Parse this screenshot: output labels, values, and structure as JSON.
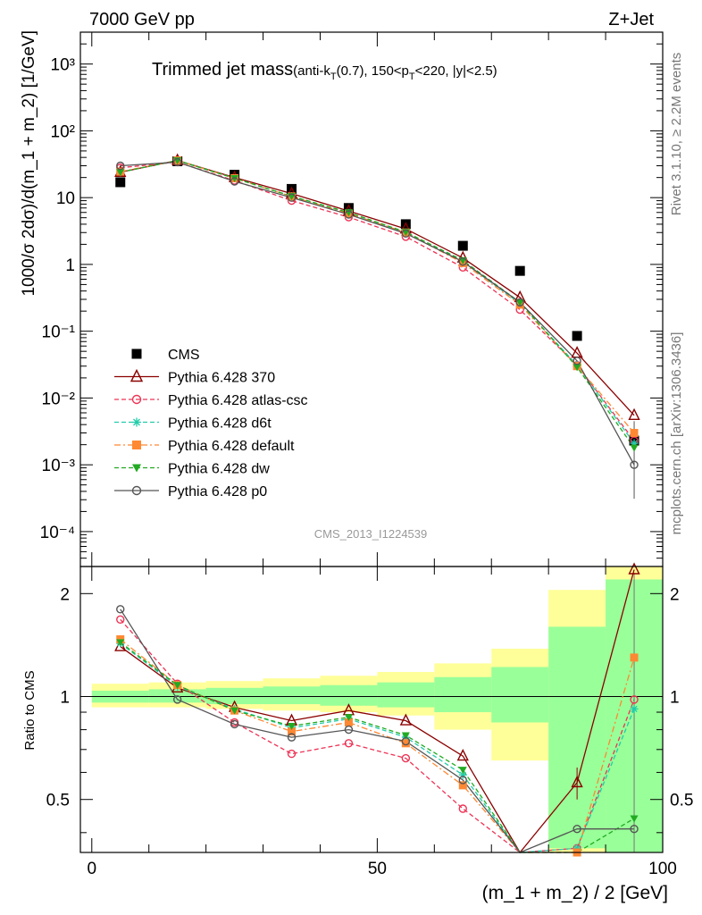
{
  "header": {
    "energy": "7000 GeV pp",
    "process": "Z+Jet",
    "rivet": "Rivet 3.1.10, ≥ 2.2M events",
    "source": "mcplots.cern.ch [arXiv:1306.3436]",
    "analysis": "CMS_2013_I1224539"
  },
  "main_plot": {
    "title_main": "Trimmed jet mass",
    "title_sub": "(anti-k",
    "title_sub_T": "T",
    "title_sub_b": "(0.7), 150<p",
    "title_sub_T2": "T",
    "title_sub_c": "<220, |y|<2.5)",
    "ylabel": "1000/σ 2dσ)/d(m_1 + m_2) [1/GeV]",
    "y_ticks": [
      "10⁻⁴",
      "10⁻³",
      "10⁻²",
      "10⁻¹",
      "1",
      "10",
      "10²",
      "10³"
    ]
  },
  "ratio_plot": {
    "ylabel": "Ratio to CMS",
    "y_ticks": [
      "0.5",
      "1",
      "2"
    ],
    "y_ticks_right": [
      "0.5",
      "1",
      "2"
    ]
  },
  "x_axis": {
    "label": "(m_1 + m_2) / 2 [GeV]",
    "ticks": [
      "0",
      "50",
      "100"
    ]
  },
  "legend": [
    {
      "label": "CMS",
      "color": "#000000",
      "marker": "filled-square",
      "style": "none"
    },
    {
      "label": "Pythia 6.428 370",
      "color": "#8b0000",
      "marker": "open-triangle",
      "style": "solid"
    },
    {
      "label": "Pythia 6.428 atlas-csc",
      "color": "#ee3355",
      "marker": "open-circle",
      "style": "dashed"
    },
    {
      "label": "Pythia 6.428 d6t",
      "color": "#22ccaa",
      "marker": "star",
      "style": "dashed"
    },
    {
      "label": "Pythia 6.428 default",
      "color": "#ff8833",
      "marker": "filled-square",
      "style": "dashdot"
    },
    {
      "label": "Pythia 6.428 dw",
      "color": "#22aa22",
      "marker": "filled-down-triangle",
      "style": "dashed"
    },
    {
      "label": "Pythia 6.428 p0",
      "color": "#555555",
      "marker": "open-circle",
      "style": "solid"
    }
  ],
  "chart_data": {
    "type": "line",
    "x": [
      5,
      15,
      25,
      35,
      45,
      55,
      65,
      75,
      85,
      95
    ],
    "xlim": [
      -2,
      100
    ],
    "ylim_main": [
      3e-05,
      3000
    ],
    "ylog_main": true,
    "ylim_ratio": [
      0.35,
      2.4
    ],
    "ylog_ratio": true,
    "bin_edges": [
      0,
      10,
      20,
      30,
      40,
      50,
      60,
      70,
      80,
      90,
      100
    ],
    "band_inner": [
      [
        0.96,
        1.04
      ],
      [
        0.96,
        1.05
      ],
      [
        0.95,
        1.06
      ],
      [
        0.95,
        1.07
      ],
      [
        0.94,
        1.08
      ],
      [
        0.93,
        1.1
      ],
      [
        0.9,
        1.14
      ],
      [
        0.84,
        1.22
      ],
      [
        0.36,
        1.6
      ],
      [
        0.35,
        2.2
      ]
    ],
    "band_outer": [
      [
        0.93,
        1.09
      ],
      [
        0.93,
        1.1
      ],
      [
        0.92,
        1.11
      ],
      [
        0.91,
        1.13
      ],
      [
        0.9,
        1.15
      ],
      [
        0.88,
        1.18
      ],
      [
        0.8,
        1.25
      ],
      [
        0.65,
        1.38
      ],
      [
        0.35,
        2.05
      ],
      [
        0.35,
        2.4
      ]
    ],
    "series": [
      {
        "name": "CMS",
        "values": [
          17,
          35,
          22,
          13.5,
          7,
          4,
          1.9,
          0.8,
          0.085,
          0.0023
        ]
      },
      {
        "name": "Pythia 6.428 370",
        "values": [
          24,
          36,
          20,
          11.5,
          6.3,
          3.4,
          1.25,
          0.32,
          0.047,
          0.0055
        ],
        "ratio": [
          1.4,
          1.06,
          0.93,
          0.85,
          0.91,
          0.85,
          0.67,
          0.33,
          0.56,
          2.35
        ]
      },
      {
        "name": "Pythia 6.428 atlas-csc",
        "values": [
          28,
          34,
          18,
          9,
          5.1,
          2.6,
          0.9,
          0.21,
          0.031,
          0.0023
        ],
        "ratio": [
          1.68,
          1.09,
          0.84,
          0.68,
          0.73,
          0.66,
          0.47,
          0.27,
          0.36,
          0.98
        ]
      },
      {
        "name": "Pythia 6.428 d6t",
        "values": [
          24,
          36,
          19.5,
          10.5,
          5.9,
          3.0,
          1.1,
          0.26,
          0.031,
          0.0021
        ],
        "ratio": [
          1.43,
          1.07,
          0.92,
          0.81,
          0.86,
          0.76,
          0.59,
          0.28,
          0.36,
          0.92
        ]
      },
      {
        "name": "Pythia 6.428 default",
        "values": [
          24.5,
          36,
          19.5,
          10.4,
          5.8,
          3.0,
          1.05,
          0.25,
          0.03,
          0.003
        ],
        "ratio": [
          1.47,
          1.08,
          0.91,
          0.79,
          0.84,
          0.73,
          0.55,
          0.27,
          0.35,
          1.3
        ]
      },
      {
        "name": "Pythia 6.428 dw",
        "values": [
          24,
          36,
          19.5,
          10.5,
          6.0,
          3.05,
          1.15,
          0.27,
          0.029,
          0.0018
        ],
        "ratio": [
          1.44,
          1.08,
          0.91,
          0.82,
          0.87,
          0.77,
          0.61,
          0.28,
          0.34,
          0.44
        ]
      },
      {
        "name": "Pythia 6.428 p0",
        "values": [
          30,
          34,
          17.5,
          10,
          5.6,
          2.9,
          1.1,
          0.27,
          0.036,
          0.001
        ],
        "ratio": [
          1.8,
          0.98,
          0.83,
          0.76,
          0.8,
          0.74,
          0.57,
          0.28,
          0.41,
          0.41
        ]
      }
    ]
  }
}
